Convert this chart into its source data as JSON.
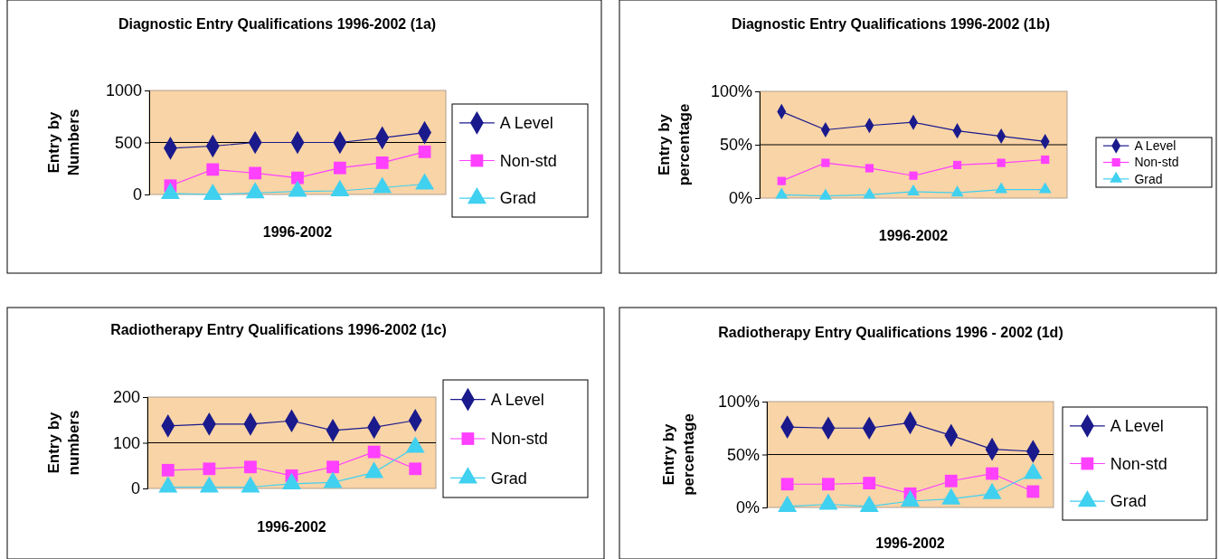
{
  "chart_data": [
    {
      "type": "line",
      "title": "Diagnostic Entry Qualifications 1996-2002  (1a)",
      "xlabel": "1996-2002",
      "ylabel": "Entry by Numbers",
      "categories": [
        null,
        null,
        null,
        null,
        null,
        null,
        null
      ],
      "ylim": [
        0,
        1000
      ],
      "yticks": [
        0,
        500,
        1000
      ],
      "grid": "y",
      "legend": "right",
      "series": [
        {
          "name": "A Level",
          "color": "#1a1a8c",
          "marker": "diamond",
          "values": [
            445,
            465,
            500,
            500,
            500,
            545,
            595
          ]
        },
        {
          "name": "Non-std",
          "color": "#ff40ff",
          "marker": "square",
          "values": [
            85,
            240,
            205,
            160,
            255,
            305,
            410
          ]
        },
        {
          "name": "Grad",
          "color": "#40d0f0",
          "marker": "triangle",
          "values": [
            10,
            0,
            15,
            30,
            35,
            65,
            100
          ]
        }
      ]
    },
    {
      "type": "line",
      "title": "Diagnostic Entry Qualifications 1996-2002  (1b)",
      "xlabel": "1996-2002",
      "ylabel": "Entry by percentage",
      "categories": [
        null,
        null,
        null,
        null,
        null,
        null,
        null
      ],
      "ylim": [
        0,
        100
      ],
      "yticks": [
        {
          "value": 0,
          "label": "0%"
        },
        {
          "value": 50,
          "label": "50%"
        },
        {
          "value": 100,
          "label": "100%"
        }
      ],
      "grid": "y",
      "legend": "right",
      "series": [
        {
          "name": "A Level",
          "color": "#1a1a8c",
          "marker": "diamond",
          "values": [
            81,
            64,
            68,
            71,
            63,
            58,
            53
          ]
        },
        {
          "name": "Non-std",
          "color": "#ff40ff",
          "marker": "square",
          "values": [
            16,
            33,
            28,
            21,
            31,
            33,
            36
          ]
        },
        {
          "name": "Grad",
          "color": "#40d0f0",
          "marker": "triangle",
          "values": [
            3,
            2,
            3,
            6,
            5,
            8,
            8
          ]
        }
      ]
    },
    {
      "type": "line",
      "title": "Radiotherapy Entry Qualifications 1996-2002 (1c)",
      "xlabel": "1996-2002",
      "ylabel": "Entry by numbers",
      "categories": [
        null,
        null,
        null,
        null,
        null,
        null,
        null
      ],
      "ylim": [
        0,
        200
      ],
      "yticks": [
        0,
        100,
        200
      ],
      "grid": "y",
      "legend": "right",
      "series": [
        {
          "name": "A Level",
          "color": "#1a1a8c",
          "marker": "diamond",
          "values": [
            137,
            141,
            141,
            148,
            127,
            134,
            149
          ]
        },
        {
          "name": "Non-std",
          "color": "#ff40ff",
          "marker": "square",
          "values": [
            40,
            43,
            47,
            28,
            47,
            80,
            43
          ]
        },
        {
          "name": "Grad",
          "color": "#40d0f0",
          "marker": "triangle",
          "values": [
            3,
            3,
            3,
            10,
            13,
            35,
            90
          ]
        }
      ]
    },
    {
      "type": "line",
      "title": "Radiotherapy Entry Qualifications 1996 - 2002 (1d)",
      "xlabel": "1996-2002",
      "ylabel": "Entry by percentage",
      "categories": [
        null,
        null,
        null,
        null,
        null,
        null,
        null
      ],
      "ylim": [
        0,
        100
      ],
      "yticks": [
        {
          "value": 0,
          "label": "0%"
        },
        {
          "value": 50,
          "label": "50%"
        },
        {
          "value": 100,
          "label": "100%"
        }
      ],
      "grid": "y",
      "legend": "right",
      "series": [
        {
          "name": "A Level",
          "color": "#1a1a8c",
          "marker": "diamond",
          "values": [
            76,
            75,
            75,
            80,
            68,
            55,
            53
          ]
        },
        {
          "name": "Non-std",
          "color": "#ff40ff",
          "marker": "square",
          "values": [
            22,
            22,
            23,
            13,
            25,
            32,
            15
          ]
        },
        {
          "name": "Grad",
          "color": "#40d0f0",
          "marker": "triangle",
          "values": [
            1,
            3,
            1,
            6,
            8,
            13,
            32
          ]
        }
      ]
    }
  ]
}
